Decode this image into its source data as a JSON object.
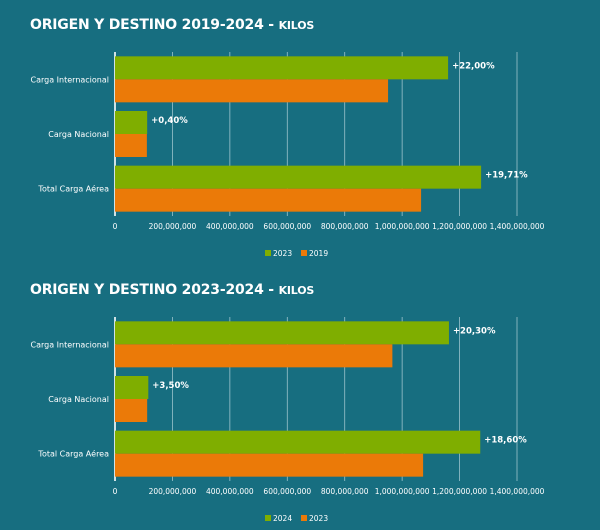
{
  "colors": {
    "green": "#7FAE00",
    "orange": "#EB7A08",
    "grid": "#9CC3CC",
    "text": "#ffffff"
  },
  "chart_data": [
    {
      "type": "bar",
      "orientation": "horizontal",
      "title": "ORIGEN Y DESTINO 2019-2024 -",
      "title_suffix": "KILOS",
      "categories": [
        "Carga Internacional",
        "Carga Nacional",
        "Total Carga Aérea"
      ],
      "series": [
        {
          "name": "2023",
          "color": "#7FAE00",
          "values": [
            1160000000,
            112000000,
            1275000000
          ]
        },
        {
          "name": "2019",
          "color": "#EB7A08",
          "values": [
            951000000,
            111000000,
            1066000000
          ]
        }
      ],
      "annotations": [
        "+22,00%",
        "+0,40%",
        "+19,71%"
      ],
      "xlim": [
        0,
        1400000000
      ],
      "xticks": [
        "0",
        "200,000,000",
        "400,000,000",
        "600,000,000",
        "800,000,000",
        "1,000,000,000",
        "1,200,000,000",
        "1,400,000,000"
      ],
      "grid": true,
      "legend": "bottom-center"
    },
    {
      "type": "bar",
      "orientation": "horizontal",
      "title": "ORIGEN Y DESTINO 2023-2024 -",
      "title_suffix": "KILOS",
      "categories": [
        "Carga Internacional",
        "Carga Nacional",
        "Total Carga Aérea"
      ],
      "series": [
        {
          "name": "2024",
          "color": "#7FAE00",
          "values": [
            1163000000,
            116000000,
            1272000000
          ]
        },
        {
          "name": "2023",
          "color": "#EB7A08",
          "values": [
            966000000,
            112000000,
            1073000000
          ]
        }
      ],
      "annotations": [
        "+20,30%",
        "+3,50%",
        "+18,60%"
      ],
      "xlim": [
        0,
        1400000000
      ],
      "xticks": [
        "0",
        "200,000,000",
        "400,000,000",
        "600,000,000",
        "800,000,000",
        "1,000,000,000",
        "1,200,000,000",
        "1,400,000,000"
      ],
      "grid": true,
      "legend": "bottom-center"
    }
  ]
}
